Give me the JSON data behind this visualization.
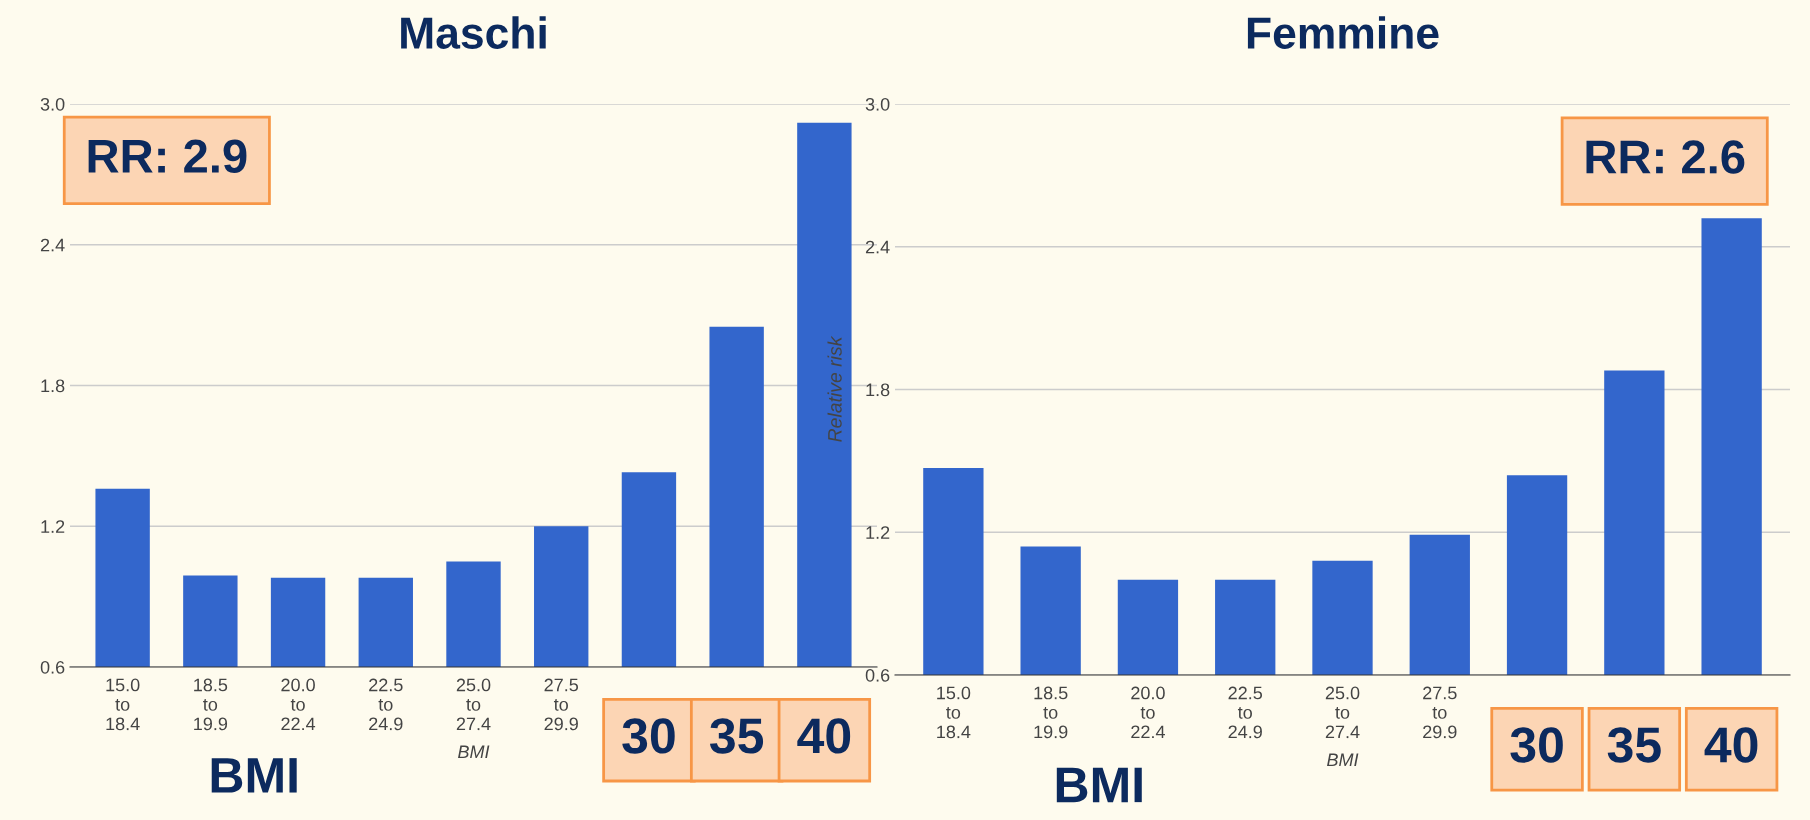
{
  "chart_data": [
    {
      "type": "bar",
      "title": "Maschi",
      "xlabel": "BMI",
      "categories": [
        "15.0\nto\n18.4",
        "18.5\nto\n19.9",
        "20.0\nto\n22.4",
        "22.5\nto\n24.9",
        "25.0\nto\n27.4",
        "27.5\nto\n29.9",
        null,
        null,
        null
      ],
      "values": [
        1.36,
        0.99,
        0.98,
        0.98,
        1.05,
        1.2,
        1.43,
        2.05,
        2.92
      ],
      "color": "#3366cc",
      "ylim": [
        0.6,
        3.0
      ],
      "yticks": [
        0.6,
        1.2,
        1.8,
        2.4,
        {
          "value": 3,
          "label": "3.0"
        }
      ],
      "grid": "y",
      "annotations": [
        "RR: 2.9",
        "BMI",
        "30",
        "35",
        "40"
      ]
    },
    {
      "type": "bar",
      "title": "Femmine",
      "xlabel": "BMI",
      "ylabel": "Relative risk",
      "categories": [
        "15.0\nto\n18.4",
        "18.5\nto\n19.9",
        "20.0\nto\n22.4",
        "22.5\nto\n24.9",
        "25.0\nto\n27.4",
        "27.5\nto\n29.9",
        null,
        null,
        null
      ],
      "values": [
        1.47,
        1.14,
        1.0,
        1.0,
        1.08,
        1.19,
        1.44,
        1.88,
        2.52
      ],
      "color": "#3366cc",
      "ylim": [
        0.6,
        3.0
      ],
      "yticks": [
        0.6,
        1.2,
        1.8,
        2.4,
        {
          "value": 3,
          "label": "3.0"
        }
      ],
      "grid": "y",
      "annotations": [
        "RR: 2.6",
        "BMI",
        "30",
        "35",
        "40"
      ]
    }
  ]
}
